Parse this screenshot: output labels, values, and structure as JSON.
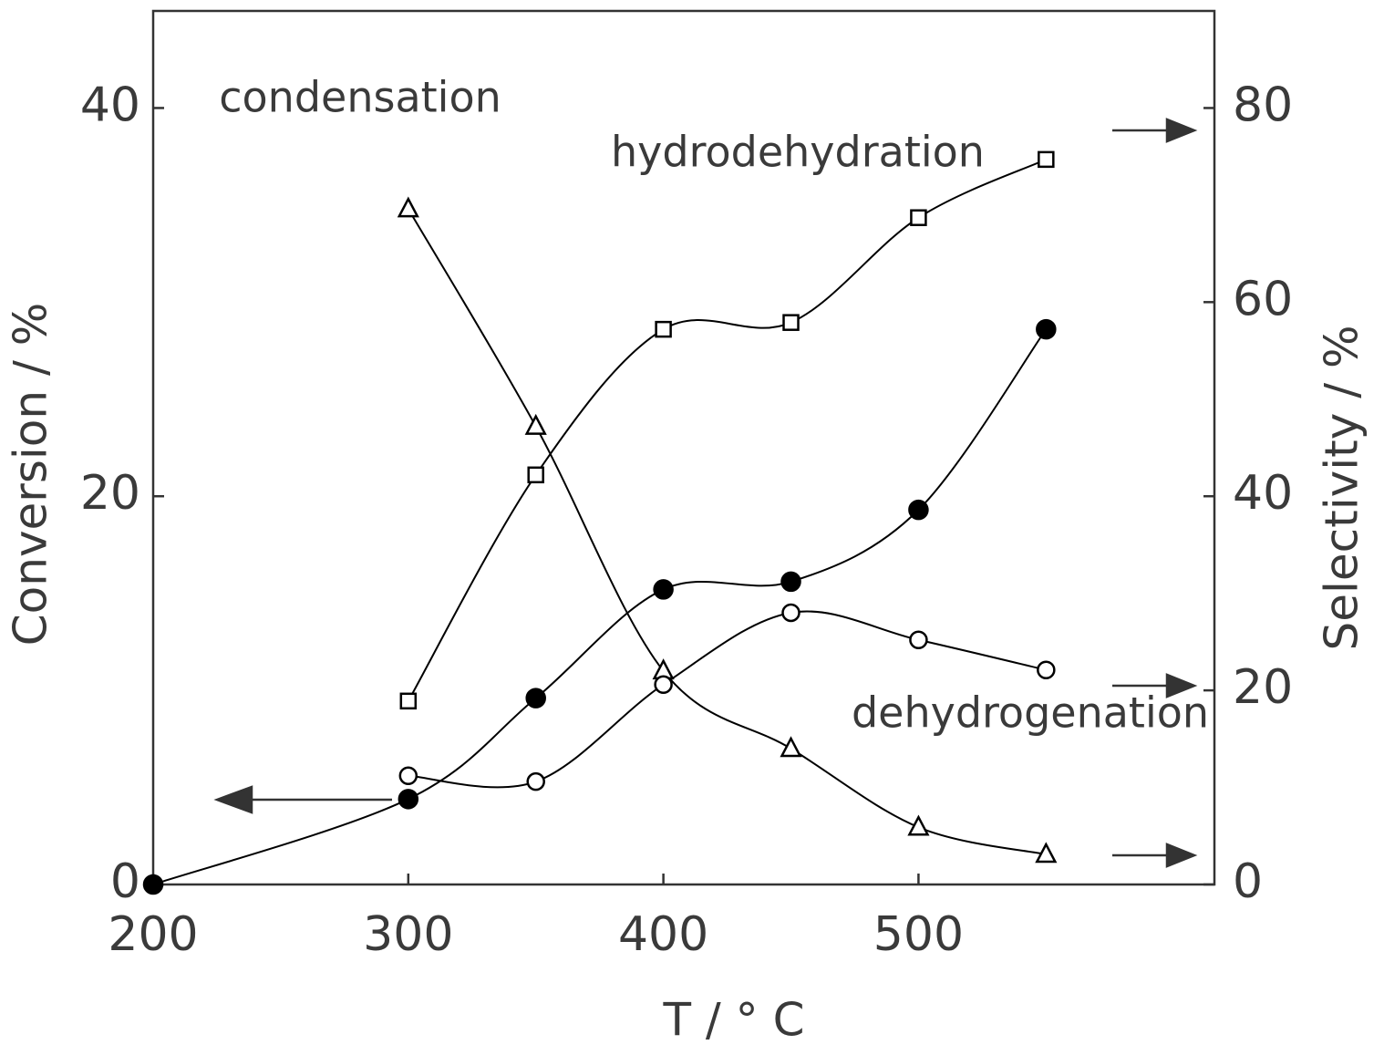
{
  "chart_data": {
    "type": "line",
    "x_label": "T / ° C",
    "y_label": "Conversion / %",
    "y2_label": "Selectivity / %",
    "x": [
      200,
      300,
      350,
      400,
      450,
      500,
      550
    ],
    "xlim": [
      200,
      616
    ],
    "xticks": [
      200,
      300,
      400,
      500
    ],
    "ylim": [
      0,
      45
    ],
    "yticks": [
      0,
      20,
      40
    ],
    "y2lim": [
      0,
      90
    ],
    "y2ticks": [
      0,
      20,
      40,
      60,
      80
    ],
    "series": [
      {
        "color": "#000000",
        "marker": "filled-circle",
        "values": [
          0,
          4.4,
          9.6,
          15.2,
          15.6,
          19.3,
          28.6
        ]
      },
      {
        "name": "hydrodehydration",
        "axis": "y2",
        "color": "#000000",
        "marker": "open-square",
        "values": [
          null,
          18.9,
          42.2,
          57.2,
          57.9,
          68.7,
          74.7
        ]
      },
      {
        "name": "condensation",
        "axis": "y2",
        "color": "#000000",
        "marker": "open-triangle",
        "values": [
          null,
          69.6,
          47.2,
          22.0,
          14.0,
          5.9,
          3.1
        ]
      },
      {
        "name": "dehydrogenation",
        "axis": "y2",
        "color": "#000000",
        "marker": "open-circle",
        "values": [
          null,
          11.2,
          10.6,
          20.6,
          28.0,
          25.2,
          22.1
        ]
      }
    ]
  }
}
